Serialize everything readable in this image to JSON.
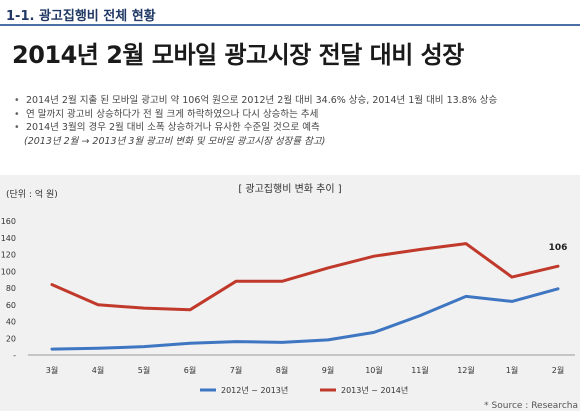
{
  "section": {
    "title": "1-1. 광고집행비 전체 현황"
  },
  "headline": "2014년 2월 모바일 광고시장 전달 대비 성장",
  "bullets": [
    "2014년 2월 지출 된 모바일 광고비 약 106억 원으로 2012년 2월 대비 34.6% 상승, 2014년 1월 대비 13.8% 상승",
    "연 말까지 광고비 상승하다가 전 월 크게 하락하였으나 다시 상승하는 추세",
    "2014년 3월의 경우 2월 대비 소폭 상승하거나 유사한 수준일 것으로 예측"
  ],
  "note": "(2013년 2월 → 2013년 3월 광고비 변화 및 모바일 광고시장 성장률 참고)",
  "source": "* Source : Researcha",
  "chart_data": {
    "type": "line",
    "title": "[ 광고집행비 변화 추이 ]",
    "unit_label": "(단위 : 억 원)",
    "categories": [
      "3월",
      "4월",
      "5월",
      "6월",
      "7월",
      "8월",
      "9월",
      "10월",
      "11월",
      "12월",
      "1월",
      "2월"
    ],
    "ylim": [
      0,
      160
    ],
    "yticks": [
      "-",
      "20",
      "40",
      "60",
      "80",
      "100",
      "120",
      "140",
      "160"
    ],
    "grid": false,
    "legend": "bottom",
    "series": [
      {
        "name": "2012년 ~ 2013년",
        "color": "#3f76c2",
        "values": [
          7,
          8,
          10,
          14,
          16,
          15,
          18,
          27,
          47,
          70,
          64,
          79
        ]
      },
      {
        "name": "2013년 ~ 2014년",
        "color": "#c0392b",
        "values": [
          84,
          60,
          56,
          54,
          88,
          88,
          104,
          118,
          126,
          133,
          93,
          106
        ]
      }
    ],
    "data_labels": [
      {
        "series": 1,
        "index": 11,
        "text": "106"
      }
    ]
  }
}
